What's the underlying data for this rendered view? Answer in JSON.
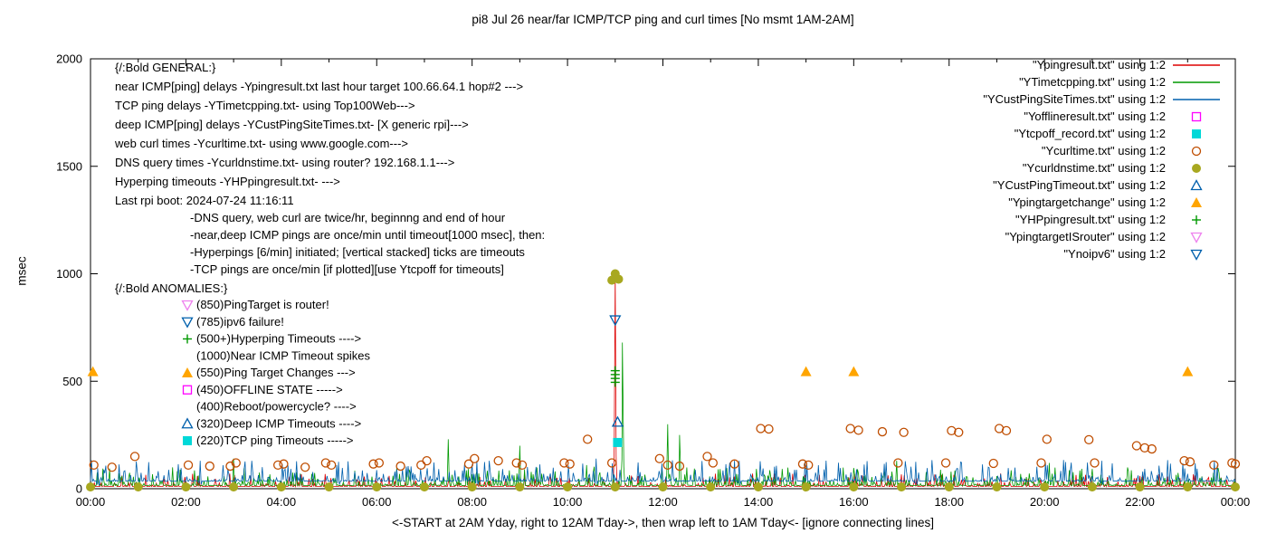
{
  "chart_data": {
    "type": "line",
    "title": "pi8 Jul 26  near/far ICMP/TCP ping and curl times [No msmt 1AM-2AM]",
    "xlabel": "<-START at 2AM Yday, right to 12AM Tday->, then wrap left to 1AM Tday<- [ignore connecting lines]",
    "ylabel": "msec",
    "xlim": [
      0,
      24
    ],
    "ylim": [
      0,
      2000
    ],
    "yticks": [
      0,
      500,
      1000,
      1500,
      2000
    ],
    "xticks": {
      "values": [
        0,
        2,
        4,
        6,
        8,
        10,
        12,
        14,
        16,
        18,
        20,
        22,
        24
      ],
      "labels": [
        "00:00",
        "02:00",
        "04:00",
        "06:00",
        "08:00",
        "10:00",
        "12:00",
        "14:00",
        "16:00",
        "18:00",
        "20:00",
        "22:00",
        "00:00"
      ]
    },
    "grid": false,
    "legend_position": "top-right",
    "lines": [
      {
        "name": "Ypingresult.txt",
        "color": "#dd0000",
        "baseline": 10,
        "noise": 28,
        "seed": 11,
        "spikes": [
          [
            11.0,
            1000
          ]
        ]
      },
      {
        "name": "YTimetcpping.txt",
        "color": "#009900",
        "baseline": 15,
        "noise": 40,
        "seed": 23,
        "spikes": [
          [
            3.0,
            140
          ],
          [
            7.5,
            230
          ],
          [
            9.0,
            200
          ],
          [
            10.4,
            110
          ],
          [
            11.15,
            680
          ],
          [
            12.1,
            300
          ],
          [
            12.35,
            250
          ],
          [
            16.9,
            130
          ],
          [
            20.1,
            120
          ]
        ]
      },
      {
        "name": "YCustPingSiteTimes.txt",
        "color": "#0060ad",
        "baseline": 35,
        "noise": 45,
        "seed": 37,
        "spikes": [
          [
            0.15,
            95
          ],
          [
            2.3,
            130
          ],
          [
            5.2,
            125
          ],
          [
            8.1,
            130
          ],
          [
            10.6,
            140
          ],
          [
            13.6,
            130
          ],
          [
            17.3,
            125
          ],
          [
            21.2,
            130
          ]
        ]
      }
    ],
    "scatter": [
      {
        "name": "Ycurltime.txt",
        "marker": "circle-open",
        "color": "#bf4d00",
        "points": [
          [
            0.07,
            110
          ],
          [
            0.45,
            100
          ],
          [
            0.93,
            150
          ],
          [
            2.05,
            110
          ],
          [
            2.5,
            105
          ],
          [
            2.93,
            105
          ],
          [
            3.05,
            120
          ],
          [
            3.93,
            110
          ],
          [
            4.05,
            115
          ],
          [
            4.5,
            100
          ],
          [
            4.93,
            120
          ],
          [
            5.05,
            110
          ],
          [
            5.93,
            115
          ],
          [
            6.05,
            120
          ],
          [
            6.5,
            105
          ],
          [
            6.93,
            110
          ],
          [
            7.05,
            130
          ],
          [
            7.93,
            115
          ],
          [
            8.05,
            140
          ],
          [
            8.55,
            130
          ],
          [
            8.93,
            120
          ],
          [
            9.05,
            110
          ],
          [
            9.93,
            120
          ],
          [
            10.05,
            115
          ],
          [
            10.42,
            230
          ],
          [
            10.93,
            120
          ],
          [
            11.93,
            140
          ],
          [
            12.1,
            110
          ],
          [
            12.35,
            105
          ],
          [
            12.93,
            150
          ],
          [
            13.05,
            120
          ],
          [
            13.5,
            115
          ],
          [
            14.05,
            280
          ],
          [
            14.22,
            278
          ],
          [
            14.93,
            115
          ],
          [
            15.05,
            110
          ],
          [
            15.93,
            280
          ],
          [
            16.1,
            272
          ],
          [
            16.6,
            265
          ],
          [
            16.93,
            120
          ],
          [
            17.05,
            262
          ],
          [
            17.93,
            120
          ],
          [
            18.05,
            270
          ],
          [
            18.2,
            262
          ],
          [
            18.93,
            118
          ],
          [
            19.05,
            280
          ],
          [
            19.2,
            270
          ],
          [
            19.93,
            120
          ],
          [
            20.05,
            230
          ],
          [
            20.93,
            228
          ],
          [
            21.05,
            120
          ],
          [
            21.93,
            200
          ],
          [
            22.1,
            190
          ],
          [
            22.25,
            185
          ],
          [
            22.93,
            130
          ],
          [
            23.05,
            125
          ],
          [
            23.55,
            110
          ],
          [
            23.93,
            120
          ],
          [
            24.0,
            115
          ]
        ]
      },
      {
        "name": "Ycurldnstime.txt",
        "marker": "circle-filled",
        "color": "#a8a820",
        "points": [
          [
            0,
            8
          ],
          [
            1,
            8
          ],
          [
            2,
            8
          ],
          [
            3,
            8
          ],
          [
            4,
            8
          ],
          [
            5,
            8
          ],
          [
            6,
            8
          ],
          [
            7,
            8
          ],
          [
            8,
            8
          ],
          [
            9,
            8
          ],
          [
            10,
            8
          ],
          [
            11,
            8
          ],
          [
            12,
            8
          ],
          [
            13,
            8
          ],
          [
            14,
            8
          ],
          [
            15,
            8
          ],
          [
            16,
            8
          ],
          [
            17,
            8
          ],
          [
            18,
            8
          ],
          [
            19,
            8
          ],
          [
            20,
            8
          ],
          [
            21,
            8
          ],
          [
            22,
            8
          ],
          [
            23,
            8
          ],
          [
            24,
            8
          ],
          [
            10.93,
            970
          ],
          [
            11.0,
            1000
          ],
          [
            11.07,
            975
          ]
        ]
      },
      {
        "name": "YCustPingTimeout.txt",
        "marker": "triangle-up-open",
        "color": "#0060ad",
        "points": [
          [
            11.05,
            310
          ]
        ]
      },
      {
        "name": "Ypingtargetchange",
        "marker": "triangle-filled",
        "color": "#ffa500",
        "points": [
          [
            0.05,
            545
          ],
          [
            15.0,
            545
          ],
          [
            16.0,
            545
          ],
          [
            23.0,
            545
          ]
        ]
      },
      {
        "name": "YHPpingresult.txt",
        "marker": "plus",
        "color": "#009900",
        "points": [
          [
            11.0,
            495
          ],
          [
            11.0,
            513
          ],
          [
            11.0,
            531
          ],
          [
            11.0,
            549
          ]
        ]
      },
      {
        "name": "YpingtargetISrouter",
        "marker": "triangle-down-open",
        "color": "#ee82ee",
        "points": []
      },
      {
        "name": "Ynoipv6",
        "marker": "triangle-down-open",
        "color": "#0060ad",
        "points": [
          [
            11.0,
            785
          ]
        ]
      },
      {
        "name": "Ytcpoff_record.txt",
        "marker": "square-filled",
        "color": "#00d8d8",
        "points": [
          [
            11.05,
            215
          ]
        ]
      },
      {
        "name": "Yofflineresult.txt",
        "marker": "square-open",
        "color": "#ff00ff",
        "points": []
      }
    ],
    "legend": [
      {
        "label": "\"Ypingresult.txt\" using 1:2",
        "type": "line",
        "color": "#dd0000"
      },
      {
        "label": "\"YTimetcpping.txt\" using 1:2",
        "type": "line",
        "color": "#009900"
      },
      {
        "label": "\"YCustPingSiteTimes.txt\" using 1:2",
        "type": "line",
        "color": "#0060ad"
      },
      {
        "label": "\"Yofflineresult.txt\" using 1:2",
        "type": "square-open",
        "color": "#ff00ff"
      },
      {
        "label": "\"Ytcpoff_record.txt\" using 1:2",
        "type": "square-filled",
        "color": "#00d8d8"
      },
      {
        "label": "\"Ycurltime.txt\" using 1:2",
        "type": "circle-open",
        "color": "#bf4d00"
      },
      {
        "label": "\"Ycurldnstime.txt\" using 1:2",
        "type": "circle-filled",
        "color": "#a8a820"
      },
      {
        "label": "\"YCustPingTimeout.txt\" using 1:2",
        "type": "triangle-up-open",
        "color": "#0060ad"
      },
      {
        "label": "\"Ypingtargetchange\" using 1:2",
        "type": "triangle-filled",
        "color": "#ffa500"
      },
      {
        "label": "\"YHPpingresult.txt\" using 1:2",
        "type": "plus",
        "color": "#009900"
      },
      {
        "label": "\"YpingtargetISrouter\" using 1:2",
        "type": "triangle-down-open",
        "color": "#ee82ee"
      },
      {
        "label": "\"Ynoipv6\" using 1:2",
        "type": "triangle-down-open",
        "color": "#0060ad"
      }
    ],
    "annotations": {
      "general": [
        "{/:Bold GENERAL:}",
        "near ICMP[ping] delays -Ypingresult.txt last hour target 100.66.64.1 hop#2 --->",
        "TCP ping delays -YTimetcpping.txt- using Top100Web--->",
        "deep ICMP[ping] delays -YCustPingSiteTimes.txt- [X generic rpi]--->",
        "web curl times -Ycurltime.txt- using www.google.com--->",
        "DNS query times -Ycurldnstime.txt- using router? 192.168.1.1--->",
        "Hyperping timeouts -YHPpingresult.txt- --->",
        "Last rpi boot: 2024-07-24 11:16:11"
      ],
      "notes": [
        "-DNS query, web curl are twice/hr, beginnng and end of hour",
        "-near,deep ICMP pings are once/min until timeout[1000 msec], then:",
        "-Hyperpings [6/min] initiated; [vertical stacked] ticks are timeouts",
        "-TCP pings are once/min [if plotted][use Ytcpoff for timeouts]"
      ],
      "anomalies_header": "{/:Bold ANOMALIES:}",
      "anomalies": [
        {
          "marker": "triangle-down-open",
          "color": "#ee82ee",
          "text": "(850)PingTarget is router!"
        },
        {
          "marker": "triangle-down-open",
          "color": "#0060ad",
          "text": "(785)ipv6 failure!"
        },
        {
          "marker": "plus",
          "color": "#009900",
          "text": "(500+)Hyperping Timeouts ---->"
        },
        {
          "marker": "none",
          "color": "",
          "text": "(1000)Near ICMP Timeout spikes"
        },
        {
          "marker": "triangle-filled",
          "color": "#ffa500",
          "text": "(550)Ping Target Changes --->"
        },
        {
          "marker": "square-open",
          "color": "#ff00ff",
          "text": "(450)OFFLINE STATE ----->"
        },
        {
          "marker": "none",
          "color": "",
          "text": "(400)Reboot/powercycle? ---->"
        },
        {
          "marker": "triangle-up-open",
          "color": "#0060ad",
          "text": "(320)Deep ICMP Timeouts ---->"
        },
        {
          "marker": "square-filled",
          "color": "#00d8d8",
          "text": "(220)TCP ping Timeouts ----->"
        }
      ]
    }
  }
}
